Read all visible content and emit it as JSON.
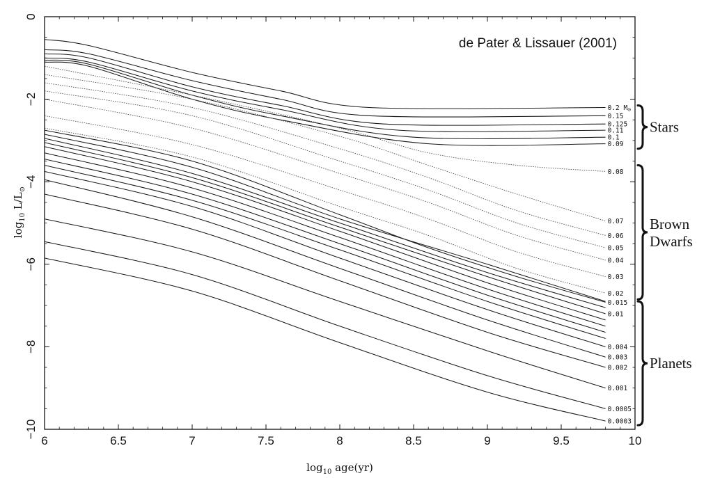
{
  "chart_data": {
    "type": "line",
    "title": "",
    "credit": "de Pater & Lissauer (2001)",
    "xlabel": {
      "main": "log",
      "sub": "10",
      "rest": " age(yr)"
    },
    "ylabel": {
      "main": "log",
      "sub": "10",
      "rest": " L/L",
      "sym": "⊙"
    },
    "xlim": [
      6,
      10
    ],
    "ylim": [
      -10,
      0
    ],
    "x_ticks": [
      "6",
      "6.5",
      "7",
      "7.5",
      "8",
      "8.5",
      "9",
      "9.5",
      "10"
    ],
    "y_ticks": [
      "0",
      "−2",
      "−4",
      "−6",
      "−8",
      "−10"
    ],
    "grid": false,
    "groups": [
      {
        "label": "Stars",
        "from": -2.15,
        "to": -3.2
      },
      {
        "label": "Brown",
        "label2": "Dwarfs",
        "from": -3.6,
        "to": -6.85
      },
      {
        "label": "Planets",
        "from": -6.9,
        "to": -9.9
      }
    ],
    "series": [
      {
        "name": "0.2 M",
        "sym": "⊙",
        "style": "solid",
        "x": [
          6,
          6.3,
          7,
          7.6,
          8.2,
          9.8
        ],
        "y": [
          -0.55,
          -0.7,
          -1.35,
          -1.8,
          -2.2,
          -2.2
        ]
      },
      {
        "name": "0.15",
        "style": "solid",
        "x": [
          6,
          6.3,
          7,
          7.6,
          8.2,
          9.8
        ],
        "y": [
          -0.8,
          -0.9,
          -1.55,
          -2.0,
          -2.4,
          -2.4
        ]
      },
      {
        "name": "0.125",
        "style": "solid",
        "x": [
          6,
          6.3,
          7,
          7.6,
          8.3,
          9.8
        ],
        "y": [
          -0.9,
          -1.0,
          -1.7,
          -2.15,
          -2.6,
          -2.6
        ]
      },
      {
        "name": "0.11",
        "style": "solid",
        "x": [
          6,
          6.3,
          7,
          7.6,
          8.4,
          9.8
        ],
        "y": [
          -1.0,
          -1.1,
          -1.8,
          -2.25,
          -2.75,
          -2.75
        ]
      },
      {
        "name": "0.1",
        "style": "solid",
        "x": [
          6,
          6.3,
          7,
          7.6,
          8.5,
          9.8
        ],
        "y": [
          -1.05,
          -1.15,
          -1.9,
          -2.4,
          -2.92,
          -2.92
        ]
      },
      {
        "name": "0.09",
        "style": "solid",
        "x": [
          6,
          6.3,
          7,
          7.6,
          8.6,
          9.8
        ],
        "y": [
          -1.1,
          -1.2,
          -2.0,
          -2.5,
          -3.08,
          -3.08
        ]
      },
      {
        "name": "0.08",
        "style": "dotted",
        "x": [
          6,
          7,
          8,
          8.6,
          9.2,
          9.8
        ],
        "y": [
          -1.2,
          -1.9,
          -2.7,
          -3.3,
          -3.6,
          -3.75
        ]
      },
      {
        "name": "0.07",
        "style": "dotted",
        "x": [
          6,
          7,
          8,
          8.6,
          9.2,
          9.8
        ],
        "y": [
          -1.4,
          -2.0,
          -2.9,
          -3.6,
          -4.3,
          -4.95
        ]
      },
      {
        "name": "0.06",
        "style": "dotted",
        "x": [
          6,
          7,
          8,
          8.6,
          9.2,
          9.8
        ],
        "y": [
          -1.6,
          -2.2,
          -3.2,
          -3.9,
          -4.7,
          -5.3
        ]
      },
      {
        "name": "0.05",
        "style": "dotted",
        "x": [
          6,
          7,
          8,
          8.6,
          9.2,
          9.8
        ],
        "y": [
          -1.8,
          -2.4,
          -3.5,
          -4.2,
          -5.0,
          -5.6
        ]
      },
      {
        "name": "0.04",
        "style": "dotted",
        "x": [
          6,
          7,
          8,
          8.6,
          9.2,
          9.8
        ],
        "y": [
          -2.0,
          -2.7,
          -3.8,
          -4.5,
          -5.3,
          -5.9
        ]
      },
      {
        "name": "0.03",
        "style": "dotted",
        "x": [
          6,
          7,
          8,
          8.6,
          9.2,
          9.8
        ],
        "y": [
          -2.4,
          -3.1,
          -4.2,
          -4.9,
          -5.7,
          -6.3
        ]
      },
      {
        "name": "0.02",
        "style": "dotted",
        "x": [
          6,
          7,
          8,
          8.6,
          9.2,
          9.8
        ],
        "y": [
          -2.7,
          -3.4,
          -4.6,
          -5.3,
          -6.1,
          -6.7
        ]
      },
      {
        "name": "0.015",
        "style": "solid",
        "x": [
          6,
          7,
          8,
          8.6,
          9.2,
          9.8
        ],
        "y": [
          -2.75,
          -3.5,
          -4.8,
          -5.6,
          -6.3,
          -6.92
        ]
      },
      {
        "name": "",
        "style": "solid",
        "x": [
          6,
          7,
          8,
          9,
          9.8
        ],
        "y": [
          -2.85,
          -3.65,
          -4.9,
          -6.0,
          -6.9
        ]
      },
      {
        "name": "",
        "style": "solid",
        "x": [
          6,
          7,
          8,
          9,
          9.8
        ],
        "y": [
          -2.95,
          -3.8,
          -5.0,
          -6.2,
          -7.05
        ]
      },
      {
        "name": "0.01",
        "style": "solid",
        "x": [
          6,
          7,
          8,
          9,
          9.8
        ],
        "y": [
          -3.05,
          -3.9,
          -5.1,
          -6.3,
          -7.2
        ]
      },
      {
        "name": "",
        "style": "solid",
        "x": [
          6,
          7,
          8,
          9,
          9.8
        ],
        "y": [
          -3.15,
          -4.0,
          -5.2,
          -6.45,
          -7.35
        ]
      },
      {
        "name": "",
        "style": "solid",
        "x": [
          6,
          7,
          8,
          9,
          9.8
        ],
        "y": [
          -3.3,
          -4.15,
          -5.35,
          -6.6,
          -7.5
        ]
      },
      {
        "name": "",
        "style": "solid",
        "x": [
          6,
          7,
          8,
          9,
          9.8
        ],
        "y": [
          -3.45,
          -4.3,
          -5.5,
          -6.75,
          -7.65
        ]
      },
      {
        "name": "",
        "style": "solid",
        "x": [
          6,
          7,
          8,
          9,
          9.8
        ],
        "y": [
          -3.6,
          -4.45,
          -5.65,
          -6.9,
          -7.8
        ]
      },
      {
        "name": "0.004",
        "style": "solid",
        "x": [
          6,
          7,
          8,
          9,
          9.8
        ],
        "y": [
          -3.75,
          -4.6,
          -5.85,
          -7.1,
          -8.0
        ]
      },
      {
        "name": "0.003",
        "style": "solid",
        "x": [
          6,
          7,
          8,
          9,
          9.8
        ],
        "y": [
          -3.95,
          -4.85,
          -6.1,
          -7.35,
          -8.25
        ]
      },
      {
        "name": "0.002",
        "style": "solid",
        "x": [
          6,
          7,
          8,
          9,
          9.8
        ],
        "y": [
          -4.3,
          -5.15,
          -6.4,
          -7.65,
          -8.5
        ]
      },
      {
        "name": "0.001",
        "style": "solid",
        "x": [
          6,
          7,
          8,
          9,
          9.8
        ],
        "y": [
          -4.9,
          -5.7,
          -6.9,
          -8.1,
          -9.0
        ]
      },
      {
        "name": "0.0005",
        "style": "solid",
        "x": [
          6,
          7,
          8,
          9,
          9.8
        ],
        "y": [
          -5.45,
          -6.25,
          -7.5,
          -8.7,
          -9.5
        ]
      },
      {
        "name": "0.0003",
        "style": "solid",
        "x": [
          6,
          7,
          8,
          9,
          9.8
        ],
        "y": [
          -5.85,
          -6.65,
          -7.9,
          -9.1,
          -9.8
        ]
      }
    ]
  }
}
